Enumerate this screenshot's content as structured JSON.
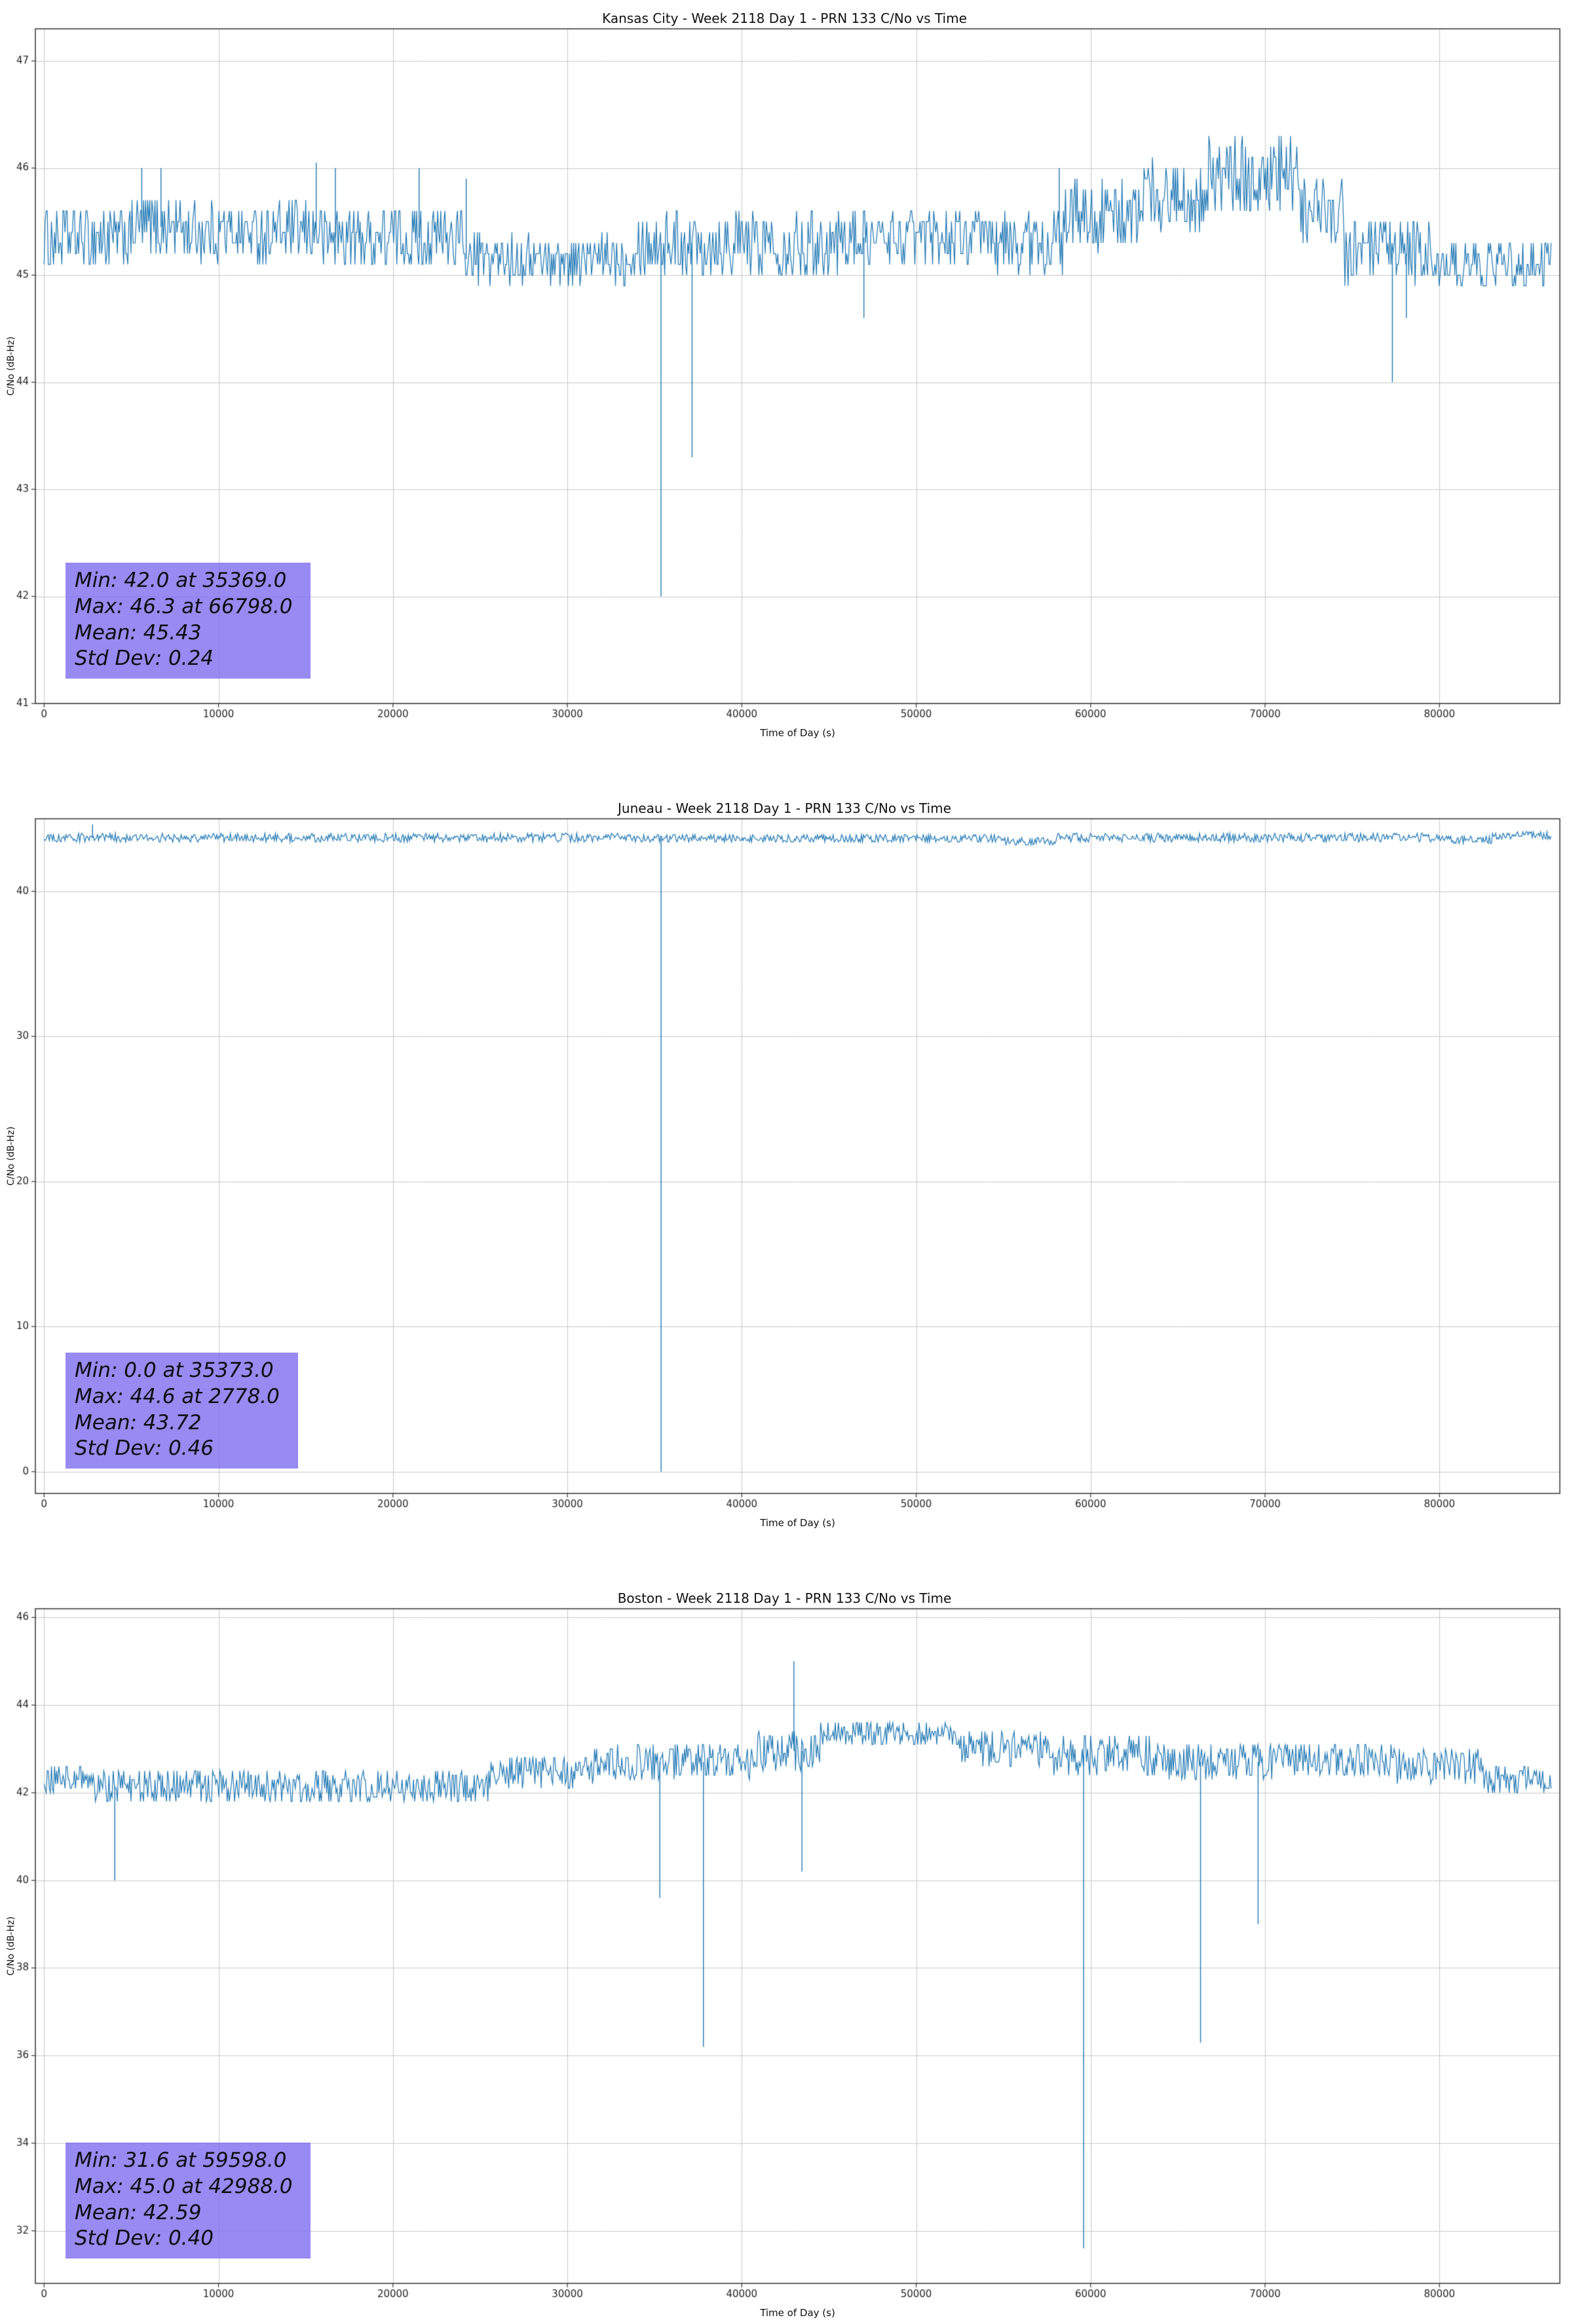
{
  "style": {
    "background_color": "#ffffff",
    "grid_color": "#c8c8c8",
    "spine_color": "#333333",
    "tick_label_color": "#262626",
    "stats_box_color": "#7b69ee"
  },
  "chart_data": [
    {
      "type": "line",
      "station": "Kansas City",
      "title": "Kansas City - Week 2118 Day 1 - PRN 133 C/No vs Time",
      "xlabel": "Time of Day (s)",
      "ylabel": "C/No (dB-Hz)",
      "line_color": "#1f77b4",
      "grid": true,
      "xlim": [
        -500,
        86900
      ],
      "ylim": [
        41,
        47.3
      ],
      "xticks": [
        0,
        10000,
        20000,
        30000,
        40000,
        50000,
        60000,
        70000,
        80000
      ],
      "yticks": [
        41,
        42,
        43,
        44,
        45,
        46,
        47
      ],
      "sample_dt": 60,
      "quantize": 0.1,
      "stats_lines": [
        "Min: 42.0 at 35369.0",
        "Max: 46.3 at 66798.0",
        "Mean: 45.43",
        "Std Dev: 0.24"
      ],
      "stats_values": {
        "min": 42.0,
        "min_time": 35369.0,
        "max": 46.3,
        "max_time": 66798.0,
        "mean": 45.43,
        "std_dev": 0.24
      },
      "baseline_segments": [
        [
          0,
          5000,
          45.35,
          0.3
        ],
        [
          5000,
          8000,
          45.45,
          0.3
        ],
        [
          8000,
          16000,
          45.4,
          0.28
        ],
        [
          16000,
          24000,
          45.35,
          0.3
        ],
        [
          24000,
          33500,
          45.15,
          0.22
        ],
        [
          33500,
          45500,
          45.3,
          0.3
        ],
        [
          45500,
          54500,
          45.35,
          0.25
        ],
        [
          54500,
          58500,
          45.3,
          0.3
        ],
        [
          58500,
          63000,
          45.55,
          0.32
        ],
        [
          63000,
          66500,
          45.75,
          0.33
        ],
        [
          66500,
          72000,
          45.9,
          0.38
        ],
        [
          72000,
          74500,
          45.6,
          0.3
        ],
        [
          74500,
          79500,
          45.2,
          0.3
        ],
        [
          79500,
          86400,
          45.1,
          0.22
        ]
      ],
      "spikes": [
        [
          5600,
          46.0
        ],
        [
          6700,
          46.0
        ],
        [
          15600,
          46.05
        ],
        [
          16700,
          46.0
        ],
        [
          21500,
          46.0
        ],
        [
          24200,
          45.9
        ],
        [
          35369,
          42.0
        ],
        [
          37150,
          43.3
        ],
        [
          47000,
          44.6
        ],
        [
          58200,
          46.0
        ],
        [
          77300,
          44.0
        ],
        [
          78100,
          44.6
        ]
      ]
    },
    {
      "type": "line",
      "station": "Juneau",
      "title": "Juneau - Week 2118 Day 1 - PRN 133 C/No vs Time",
      "xlabel": "Time of Day (s)",
      "ylabel": "C/No (dB-Hz)",
      "line_color": "#1f77b4",
      "grid": true,
      "xlim": [
        -500,
        86900
      ],
      "ylim": [
        -1.5,
        45.0
      ],
      "xticks": [
        0,
        10000,
        20000,
        30000,
        40000,
        50000,
        60000,
        70000,
        80000
      ],
      "yticks": [
        0,
        10,
        20,
        30,
        40
      ],
      "sample_dt": 60,
      "quantize": 0.1,
      "stats_lines": [
        "Min: 0.0 at 35373.0",
        "Max: 44.6 at 2778.0",
        "Mean: 43.72",
        "Std Dev: 0.46"
      ],
      "stats_values": {
        "min": 0.0,
        "min_time": 35373.0,
        "max": 44.6,
        "max_time": 2778.0,
        "mean": 43.72,
        "std_dev": 0.46
      },
      "baseline_segments": [
        [
          0,
          35000,
          43.7,
          0.3
        ],
        [
          35000,
          55000,
          43.65,
          0.3
        ],
        [
          55000,
          58000,
          43.45,
          0.28
        ],
        [
          58000,
          80500,
          43.7,
          0.3
        ],
        [
          80500,
          83000,
          43.55,
          0.28
        ],
        [
          83000,
          86400,
          43.85,
          0.3
        ]
      ],
      "spikes": [
        [
          2778,
          44.6
        ],
        [
          35373,
          0.0
        ]
      ]
    },
    {
      "type": "line",
      "station": "Boston",
      "title": "Boston - Week 2118 Day 1 - PRN 133 C/No vs Time",
      "xlabel": "Time of Day (s)",
      "ylabel": "C/No (dB-Hz)",
      "line_color": "#1f77b4",
      "grid": true,
      "xlim": [
        -500,
        86900
      ],
      "ylim": [
        30.8,
        46.2
      ],
      "xticks": [
        0,
        10000,
        20000,
        30000,
        40000,
        50000,
        60000,
        70000,
        80000
      ],
      "yticks": [
        32,
        34,
        36,
        38,
        40,
        42,
        44,
        46
      ],
      "sample_dt": 60,
      "quantize": 0.1,
      "stats_lines": [
        "Min: 31.6 at 59598.0",
        "Max: 45.0 at 42988.0",
        "Mean: 42.59",
        "Std Dev: 0.40"
      ],
      "stats_values": {
        "min": 31.6,
        "min_time": 59598.0,
        "max": 45.0,
        "max_time": 42988.0,
        "mean": 42.59,
        "std_dev": 0.4
      },
      "baseline_segments": [
        [
          0,
          2500,
          42.3,
          0.35
        ],
        [
          2500,
          25500,
          42.15,
          0.4
        ],
        [
          25500,
          31500,
          42.45,
          0.4
        ],
        [
          31500,
          40500,
          42.7,
          0.42
        ],
        [
          40500,
          44500,
          42.95,
          0.45
        ],
        [
          44500,
          52500,
          43.35,
          0.3
        ],
        [
          52500,
          57500,
          43.0,
          0.4
        ],
        [
          57500,
          63500,
          42.85,
          0.5
        ],
        [
          63500,
          70500,
          42.7,
          0.45
        ],
        [
          70500,
          77500,
          42.75,
          0.4
        ],
        [
          77500,
          82500,
          42.6,
          0.4
        ],
        [
          82500,
          86400,
          42.3,
          0.35
        ]
      ],
      "spikes": [
        [
          4050,
          40.0
        ],
        [
          35300,
          39.6
        ],
        [
          37800,
          36.2
        ],
        [
          42988,
          45.0
        ],
        [
          43450,
          40.2
        ],
        [
          59598,
          31.6
        ],
        [
          66300,
          36.3
        ],
        [
          69600,
          39.0
        ]
      ]
    }
  ]
}
